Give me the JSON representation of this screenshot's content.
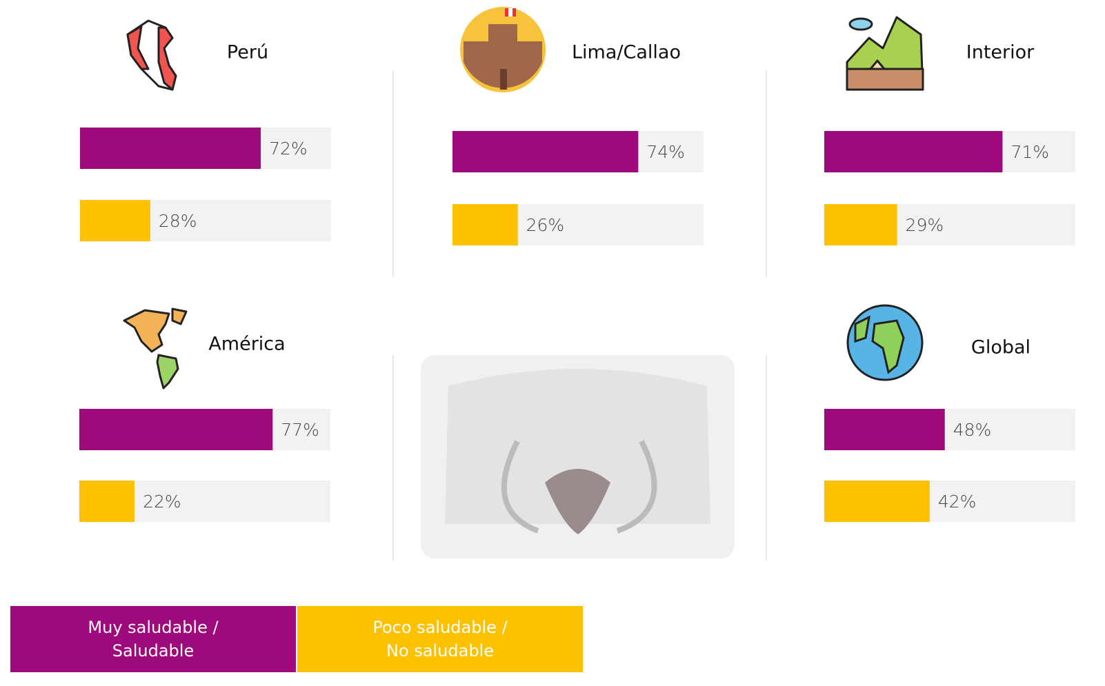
{
  "chart_data": {
    "type": "bar",
    "orientation": "horizontal",
    "categories": [
      "Perú",
      "Lima/Callao",
      "Interior",
      "América",
      "Global"
    ],
    "series": [
      {
        "name": "Muy saludable / Saludable",
        "color": "#9e0a7c",
        "values": [
          72,
          74,
          71,
          77,
          48
        ],
        "value_labels": [
          "72%",
          "74%",
          "71%",
          "77%",
          "48%"
        ]
      },
      {
        "name": "Poco saludable / No saludable",
        "color": "#fdc100",
        "values": [
          28,
          26,
          29,
          22,
          42
        ],
        "value_labels": [
          "28%",
          "26%",
          "29%",
          "22%",
          "42%"
        ]
      }
    ],
    "xlim": [
      0,
      100
    ]
  }
}
